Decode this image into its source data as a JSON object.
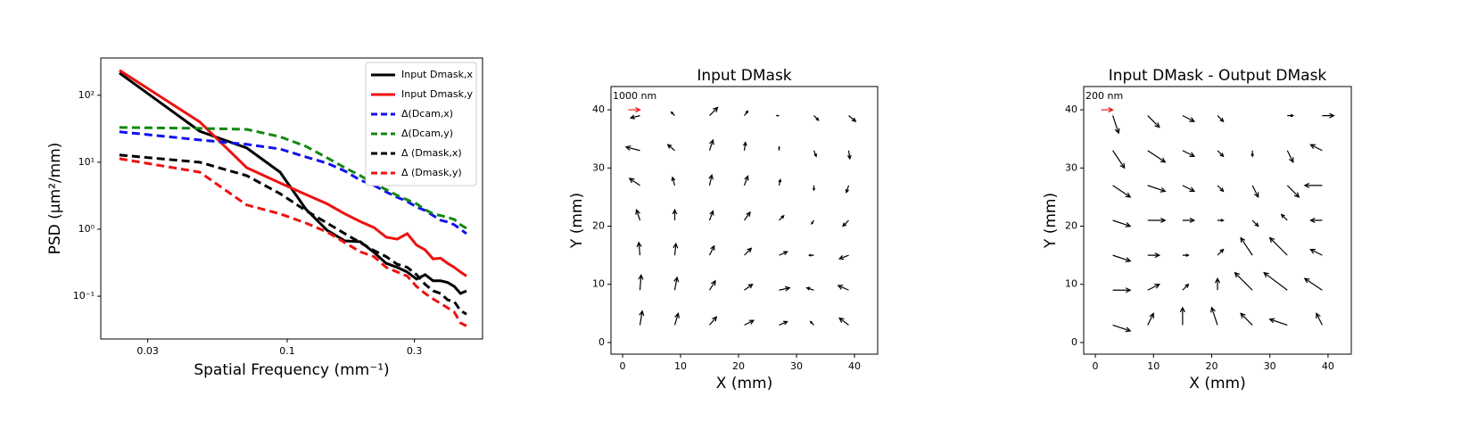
{
  "chart_data": [
    {
      "type": "line",
      "log_x": true,
      "log_y": true,
      "xlabel": "Spatial Frequency (mm⁻¹)",
      "ylabel": "PSD (μm²/mm)",
      "x": [
        0.0235,
        0.047,
        0.0705,
        0.094,
        0.1175,
        0.141,
        0.1645,
        0.188,
        0.2115,
        0.235,
        0.2585,
        0.282,
        0.3055,
        0.329,
        0.3525,
        0.376,
        0.3995,
        0.423,
        0.4465,
        0.47
      ],
      "xlim": [
        0.02,
        0.54
      ],
      "xticks": [
        0.03,
        0.1,
        0.3
      ],
      "ylim": [
        0.023,
        360
      ],
      "yticks": [
        {
          "value": 0.1,
          "label": "10⁻¹"
        },
        {
          "value": 1,
          "label": "10⁰"
        },
        {
          "value": 10,
          "label": "10¹"
        },
        {
          "value": 100,
          "label": "10²"
        }
      ],
      "legend": "upper right",
      "series": [
        {
          "name": "Input Dmask,x",
          "color": "#000000",
          "dash": false,
          "values": [
            215,
            29,
            16.3,
            7.1,
            2.0,
            0.97,
            0.67,
            0.65,
            0.45,
            0.31,
            0.27,
            0.23,
            0.18,
            0.21,
            0.17,
            0.17,
            0.16,
            0.14,
            0.11,
            0.12
          ]
        },
        {
          "name": "Input Dmask,y",
          "color": "#ee1111",
          "dash": false,
          "values": [
            236,
            40,
            8.3,
            4.9,
            3.3,
            2.4,
            1.7,
            1.3,
            1.06,
            0.76,
            0.71,
            0.86,
            0.58,
            0.49,
            0.36,
            0.37,
            0.31,
            0.27,
            0.23,
            0.2
          ]
        },
        {
          "name": "Δ(Dcam,x)",
          "color": "#1111ee",
          "dash": true,
          "values": [
            28.5,
            21.5,
            18.5,
            15.8,
            12,
            9.7,
            7.4,
            5.4,
            4.5,
            3.6,
            3.0,
            2.6,
            2.15,
            1.9,
            1.6,
            1.36,
            1.28,
            1.17,
            1.0,
            0.86
          ]
        },
        {
          "name": "Δ(Dcam,y)",
          "color": "#118811",
          "dash": true,
          "values": [
            33,
            32,
            31,
            24,
            17.3,
            11.7,
            8.3,
            6.3,
            4.8,
            3.9,
            3.2,
            2.75,
            2.4,
            1.96,
            1.7,
            1.6,
            1.5,
            1.4,
            1.17,
            1.03
          ]
        },
        {
          "name": "Δ (Dmask,x)",
          "color": "#000000",
          "dash": true,
          "values": [
            12.8,
            10,
            6.3,
            3.4,
            1.9,
            1.24,
            0.86,
            0.63,
            0.48,
            0.39,
            0.3,
            0.27,
            0.21,
            0.15,
            0.12,
            0.11,
            0.088,
            0.083,
            0.061,
            0.054
          ]
        },
        {
          "name": "Δ (Dmask,y)",
          "color": "#ee1111",
          "dash": true,
          "values": [
            11.3,
            7.1,
            2.3,
            1.7,
            1.24,
            0.91,
            0.63,
            0.46,
            0.39,
            0.27,
            0.23,
            0.2,
            0.14,
            0.11,
            0.091,
            0.078,
            0.067,
            0.058,
            0.04,
            0.036
          ]
        }
      ]
    },
    {
      "type": "quiver",
      "title": "Input DMask",
      "xlabel": "X (mm)",
      "ylabel": "Y (mm)",
      "xlim": [
        -2,
        44
      ],
      "ylim": [
        -2,
        44
      ],
      "xticks": [
        0,
        10,
        20,
        30,
        40
      ],
      "yticks": [
        0,
        10,
        20,
        30,
        40
      ],
      "key": {
        "value": 1000,
        "label": "1000 nm"
      },
      "color": "#000000",
      "key_color": "#ee1111",
      "grid_x": [
        3,
        9,
        15,
        21,
        27,
        33,
        39
      ],
      "grid_y": [
        3,
        9,
        15,
        21,
        27,
        33,
        39
      ],
      "u": [
        [
          200,
          300,
          600,
          800,
          700,
          -300,
          -800
        ],
        [
          100,
          200,
          500,
          700,
          900,
          -600,
          -900
        ],
        [
          -100,
          100,
          400,
          600,
          700,
          -400,
          -800
        ],
        [
          -300,
          0,
          300,
          500,
          400,
          -200,
          -500
        ],
        [
          -900,
          -200,
          200,
          300,
          100,
          0,
          -200
        ],
        [
          -1200,
          -600,
          300,
          100,
          0,
          200,
          100
        ],
        [
          -800,
          -300,
          700,
          300,
          -200,
          400,
          600
        ]
      ],
      "v": [
        [
          1200,
          1000,
          700,
          400,
          300,
          300,
          600
        ],
        [
          1300,
          1100,
          800,
          500,
          200,
          200,
          400
        ],
        [
          1100,
          1000,
          800,
          600,
          300,
          0,
          -300
        ],
        [
          900,
          900,
          800,
          700,
          400,
          -300,
          -500
        ],
        [
          600,
          700,
          900,
          800,
          500,
          -400,
          -600
        ],
        [
          300,
          500,
          900,
          700,
          300,
          -500,
          -700
        ],
        [
          -200,
          300,
          700,
          400,
          0,
          -400,
          -500
        ]
      ]
    },
    {
      "type": "quiver",
      "title": "Input DMask - Output DMask",
      "xlabel": "X (mm)",
      "ylabel": "Y (mm)",
      "xlim": [
        -2,
        44
      ],
      "ylim": [
        -2,
        44
      ],
      "xticks": [
        0,
        10,
        20,
        30,
        40
      ],
      "yticks": [
        0,
        10,
        20,
        30,
        40
      ],
      "key": {
        "value": 200,
        "label": "200 nm"
      },
      "color": "#000000",
      "key_color": "#ee1111",
      "grid_x": [
        3,
        9,
        15,
        21,
        27,
        33,
        39
      ],
      "grid_y": [
        3,
        9,
        15,
        21,
        27,
        33,
        39
      ],
      "u": [
        [
          300,
          100,
          0,
          -100,
          -200,
          -300,
          -100
        ],
        [
          300,
          200,
          100,
          0,
          -300,
          -400,
          -300
        ],
        [
          300,
          200,
          100,
          100,
          -200,
          -300,
          -200
        ],
        [
          300,
          300,
          200,
          100,
          100,
          -100,
          -200
        ],
        [
          300,
          300,
          200,
          100,
          100,
          200,
          -300
        ],
        [
          200,
          300,
          200,
          100,
          0,
          100,
          -200
        ],
        [
          100,
          200,
          200,
          100,
          0,
          100,
          200
        ]
      ],
      "v": [
        [
          -100,
          200,
          300,
          300,
          200,
          100,
          200
        ],
        [
          0,
          100,
          100,
          200,
          300,
          300,
          200
        ],
        [
          -100,
          0,
          0,
          100,
          300,
          300,
          100
        ],
        [
          -100,
          0,
          0,
          0,
          -100,
          100,
          0
        ],
        [
          -200,
          -100,
          -100,
          -100,
          -200,
          -200,
          0
        ],
        [
          -300,
          -200,
          -100,
          -100,
          -100,
          -200,
          100
        ],
        [
          -300,
          -200,
          -100,
          -100,
          0,
          0,
          0
        ]
      ]
    }
  ]
}
